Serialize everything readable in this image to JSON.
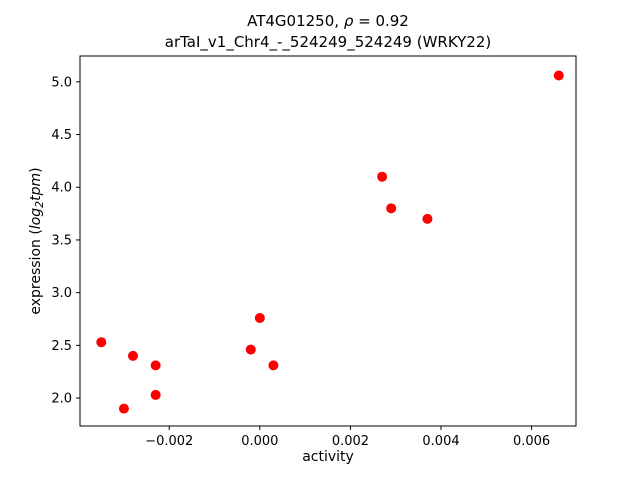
{
  "figure": {
    "title_prefix": "AT4G01250, ",
    "title_rho": "ρ",
    "title_suffix": " = 0.92",
    "subtitle": "arTaI_v1_Chr4_-_524249_524249 (WRKY22)",
    "xlabel": "activity",
    "ylabel_prefix": "expression (",
    "ylabel_log": "log",
    "ylabel_sub": "2",
    "ylabel_tpm": "tpm",
    "ylabel_close": ")"
  },
  "chart_data": {
    "type": "scatter",
    "title": "AT4G01250, ρ = 0.92\narTaI_v1_Chr4_-_524249_524249 (WRKY22)",
    "xlabel": "activity",
    "ylabel": "expression (log2 tpm)",
    "legend": null,
    "grid": false,
    "marker": "circle",
    "marker_color": "#ff0000",
    "marker_radius_px": 5,
    "xlim": [
      -0.00397,
      0.00698
    ],
    "ylim": [
      1.735,
      5.245
    ],
    "xticks": [
      -0.002,
      0.0,
      0.002,
      0.004,
      0.006
    ],
    "xtick_labels": [
      "−0.002",
      "0.000",
      "0.002",
      "0.004",
      "0.006"
    ],
    "yticks": [
      2.0,
      2.5,
      3.0,
      3.5,
      4.0,
      4.5,
      5.0
    ],
    "ytick_labels": [
      "2.0",
      "2.5",
      "3.0",
      "3.5",
      "4.0",
      "4.5",
      "5.0"
    ],
    "points": [
      {
        "x": -0.0035,
        "y": 2.53
      },
      {
        "x": -0.003,
        "y": 1.9
      },
      {
        "x": -0.0028,
        "y": 2.4
      },
      {
        "x": -0.0023,
        "y": 2.31
      },
      {
        "x": -0.0023,
        "y": 2.03
      },
      {
        "x": -0.0002,
        "y": 2.46
      },
      {
        "x": 0.0,
        "y": 2.76
      },
      {
        "x": 0.0003,
        "y": 2.31
      },
      {
        "x": 0.0027,
        "y": 4.1
      },
      {
        "x": 0.0029,
        "y": 3.8
      },
      {
        "x": 0.0037,
        "y": 3.7
      },
      {
        "x": 0.0066,
        "y": 5.06
      }
    ]
  }
}
